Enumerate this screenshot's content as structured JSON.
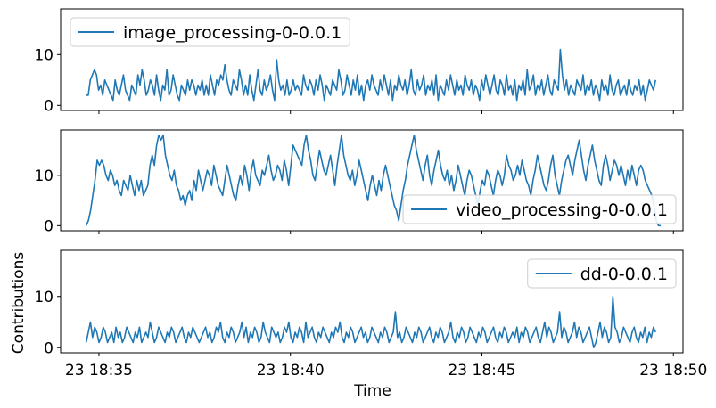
{
  "chart_data": {
    "type": "line",
    "layout": "3 vertically stacked panels, shared x axis and shared y axis",
    "xlabel": "Time",
    "ylabel": "Contributions",
    "x_ticks": [
      "23 18:35",
      "23 18:40",
      "23 18:45",
      "23 18:50"
    ],
    "x_range": [
      "18:34:00",
      "18:50:15"
    ],
    "y_ticks": [
      0,
      10
    ],
    "ylim": [
      -1,
      19
    ],
    "line_color": "#1f77b4",
    "panels": [
      {
        "legend_position": "upper left",
        "series": {
          "name": "image_processing-0-0.0.1",
          "start": "18:34:40",
          "end": "18:49:32",
          "values": [
            2,
            2,
            5,
            6,
            7,
            6,
            3,
            4,
            2,
            5,
            4,
            3,
            2,
            1,
            5,
            3,
            2,
            4,
            6,
            3,
            2,
            1,
            4,
            3,
            2,
            6,
            4,
            7,
            5,
            2,
            3,
            5,
            4,
            2,
            6,
            3,
            1,
            4,
            3,
            7,
            2,
            3,
            6,
            4,
            2,
            1,
            4,
            3,
            2,
            5,
            3,
            5,
            4,
            2,
            4,
            3,
            5,
            2,
            4,
            2,
            6,
            4,
            2,
            5,
            4,
            6,
            5,
            8,
            5,
            3,
            2,
            5,
            4,
            3,
            7,
            5,
            2,
            4,
            2,
            6,
            3,
            1,
            4,
            7,
            3,
            2,
            5,
            3,
            4,
            6,
            3,
            1,
            9,
            5,
            3,
            4,
            2,
            5,
            2,
            3,
            5,
            3,
            4,
            3,
            2,
            6,
            4,
            3,
            5,
            4,
            2,
            5,
            3,
            6,
            4,
            1,
            4,
            3,
            2,
            5,
            4,
            3,
            7,
            5,
            2,
            3,
            6,
            4,
            2,
            5,
            3,
            6,
            2,
            4,
            1,
            4,
            5,
            3,
            6,
            4,
            3,
            2,
            5,
            3,
            6,
            4,
            2,
            5,
            1,
            4,
            3,
            6,
            4,
            3,
            5,
            2,
            4,
            7,
            3,
            2,
            5,
            3,
            4,
            6,
            2,
            4,
            3,
            5,
            2,
            6,
            1,
            4,
            3,
            2,
            5,
            3,
            6,
            4,
            2,
            5,
            3,
            4,
            2,
            6,
            4,
            3,
            5,
            2,
            4,
            3,
            1,
            5,
            3,
            6,
            4,
            2,
            4,
            6,
            3,
            2,
            5,
            4,
            2,
            6,
            3,
            4,
            2,
            5,
            1,
            4,
            3,
            5,
            2,
            7,
            3,
            4,
            6,
            2,
            4,
            3,
            5,
            2,
            4,
            6,
            3,
            2,
            5,
            4,
            3,
            11,
            6,
            3,
            5,
            2,
            4,
            3,
            2,
            5,
            4,
            3,
            6,
            2,
            4,
            3,
            5,
            2,
            4,
            3,
            1,
            5,
            3,
            4,
            2,
            6,
            3,
            2,
            4,
            5,
            2,
            3,
            4,
            2,
            5,
            3,
            2,
            4,
            3,
            5,
            2,
            4,
            1,
            3,
            5,
            4,
            3,
            5
          ]
        }
      },
      {
        "legend_position": "lower right",
        "series": {
          "name": "video_processing-0-0.0.1",
          "start": "18:34:40",
          "end": "18:49:40",
          "values": [
            0,
            1,
            3,
            6,
            9,
            13,
            12,
            13,
            12,
            10,
            9,
            11,
            10,
            8,
            9,
            7,
            6,
            9,
            8,
            7,
            10,
            8,
            6,
            9,
            7,
            9,
            6,
            7,
            8,
            12,
            14,
            12,
            16,
            18,
            17,
            18,
            14,
            12,
            10,
            9,
            11,
            8,
            7,
            5,
            6,
            4,
            6,
            7,
            5,
            9,
            7,
            11,
            9,
            7,
            9,
            11,
            10,
            8,
            12,
            10,
            8,
            7,
            6,
            9,
            12,
            10,
            8,
            6,
            5,
            8,
            10,
            8,
            12,
            10,
            7,
            11,
            13,
            10,
            9,
            8,
            11,
            10,
            12,
            14,
            11,
            9,
            10,
            12,
            11,
            9,
            13,
            11,
            8,
            12,
            16,
            15,
            14,
            13,
            12,
            16,
            18,
            15,
            13,
            10,
            9,
            12,
            15,
            13,
            11,
            10,
            12,
            14,
            11,
            8,
            12,
            15,
            18,
            14,
            12,
            10,
            9,
            11,
            8,
            10,
            13,
            11,
            9,
            7,
            5,
            8,
            10,
            8,
            6,
            9,
            7,
            10,
            12,
            10,
            8,
            6,
            4,
            3,
            1,
            4,
            7,
            9,
            12,
            14,
            16,
            18,
            15,
            13,
            11,
            9,
            12,
            14,
            10,
            8,
            11,
            13,
            15,
            12,
            10,
            9,
            11,
            8,
            10,
            7,
            9,
            12,
            10,
            8,
            6,
            9,
            11,
            10,
            8,
            6,
            4,
            7,
            9,
            8,
            11,
            10,
            8,
            6,
            9,
            11,
            10,
            8,
            10,
            14,
            12,
            11,
            9,
            10,
            12,
            10,
            13,
            11,
            9,
            8,
            6,
            9,
            11,
            14,
            12,
            10,
            8,
            7,
            9,
            12,
            14,
            10,
            8,
            6,
            9,
            11,
            13,
            14,
            12,
            10,
            13,
            15,
            17,
            14,
            11,
            9,
            12,
            14,
            16,
            13,
            11,
            9,
            8,
            12,
            14,
            12,
            9,
            11,
            13,
            12,
            10,
            12,
            10,
            8,
            11,
            9,
            12,
            10,
            8,
            11,
            12,
            11,
            9,
            8,
            7,
            6,
            4,
            1,
            0,
            0
          ]
        }
      },
      {
        "legend_position": "upper right",
        "series": {
          "name": "dd-0-0.0.1",
          "start": "18:34:40",
          "end": "18:49:32",
          "values": [
            1,
            3,
            5,
            2,
            4,
            3,
            1,
            2,
            4,
            3,
            1,
            2,
            3,
            1,
            4,
            2,
            3,
            1,
            2,
            4,
            3,
            2,
            1,
            3,
            2,
            4,
            1,
            2,
            3,
            2,
            5,
            3,
            1,
            2,
            4,
            3,
            2,
            1,
            3,
            2,
            4,
            3,
            1,
            2,
            3,
            4,
            2,
            1,
            3,
            2,
            4,
            3,
            2,
            1,
            2,
            3,
            4,
            2,
            3,
            1,
            2,
            4,
            3,
            5,
            2,
            1,
            3,
            2,
            4,
            3,
            1,
            2,
            3,
            5,
            2,
            4,
            1,
            3,
            2,
            4,
            3,
            1,
            2,
            5,
            3,
            2,
            1,
            4,
            3,
            2,
            3,
            1,
            2,
            4,
            3,
            5,
            2,
            1,
            3,
            2,
            4,
            3,
            1,
            5,
            2,
            3,
            4,
            2,
            1,
            3,
            2,
            4,
            3,
            2,
            1,
            3,
            2,
            4,
            3,
            5,
            2,
            1,
            3,
            2,
            4,
            3,
            1,
            2,
            3,
            4,
            2,
            3,
            1,
            2,
            4,
            3,
            2,
            1,
            3,
            2,
            4,
            3,
            1,
            2,
            3,
            7,
            2,
            3,
            1,
            2,
            4,
            3,
            2,
            1,
            3,
            2,
            4,
            3,
            1,
            2,
            3,
            4,
            2,
            1,
            3,
            2,
            4,
            3,
            1,
            2,
            3,
            5,
            2,
            1,
            3,
            2,
            4,
            3,
            1,
            2,
            4,
            3,
            2,
            1,
            3,
            2,
            4,
            3,
            1,
            2,
            3,
            4,
            2,
            1,
            3,
            2,
            4,
            3,
            1,
            2,
            3,
            2,
            4,
            1,
            3,
            2,
            4,
            3,
            1,
            2,
            3,
            4,
            2,
            1,
            3,
            5,
            2,
            4,
            3,
            1,
            2,
            3,
            7,
            2,
            4,
            3,
            1,
            2,
            3,
            5,
            2,
            4,
            3,
            1,
            2,
            3,
            4,
            2,
            0,
            1,
            3,
            5,
            2,
            4,
            3,
            1,
            2,
            10,
            4,
            3,
            1,
            2,
            4,
            3,
            2,
            1,
            3,
            4,
            2,
            1,
            3,
            2,
            4,
            1,
            3,
            2,
            4,
            3
          ]
        }
      }
    ]
  }
}
